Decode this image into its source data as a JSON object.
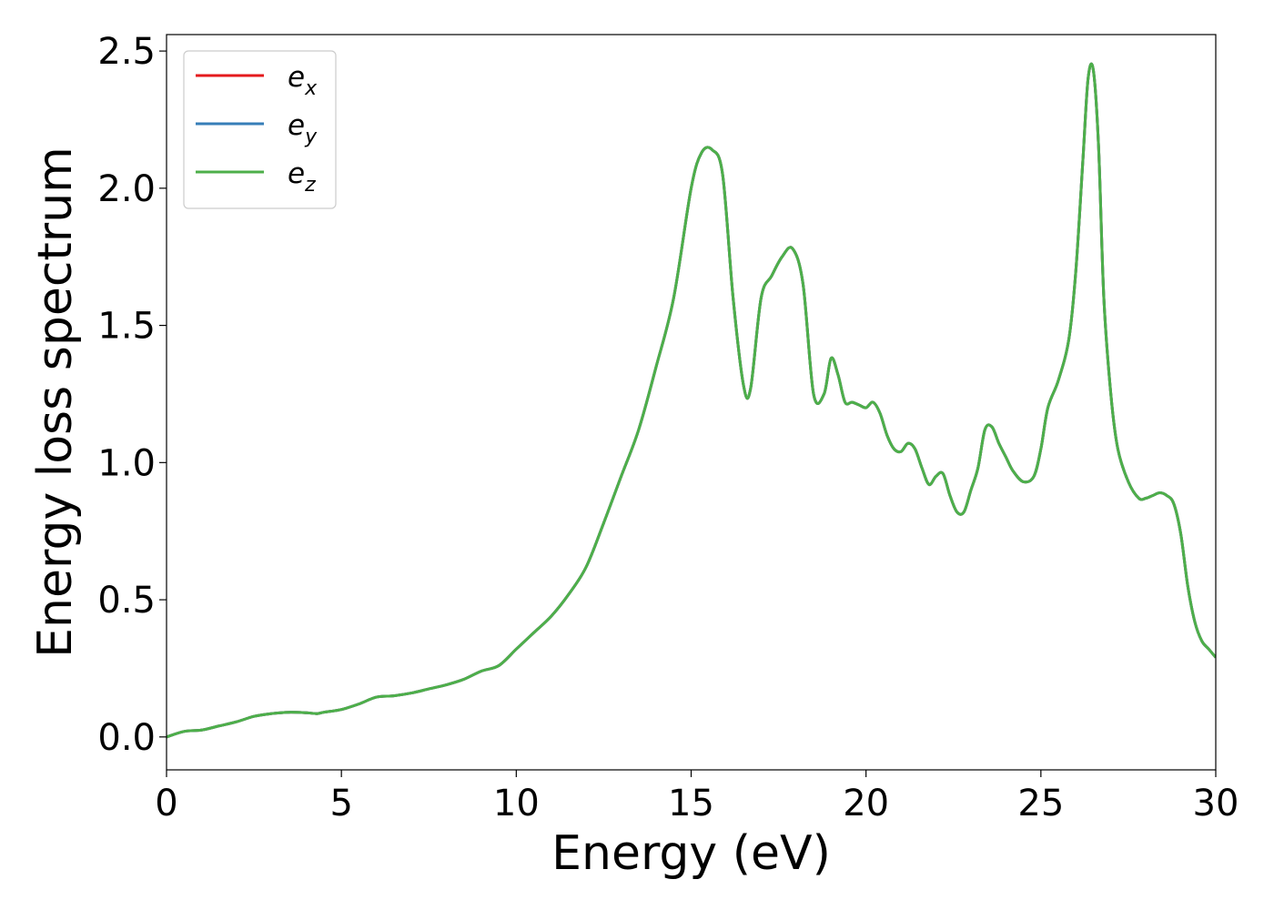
{
  "chart_data": {
    "type": "line",
    "title": "",
    "xlabel": "Energy (eV)",
    "ylabel": "Energy loss spectrum",
    "xlim": [
      0,
      30
    ],
    "ylim": [
      -0.12,
      2.56
    ],
    "xticks": [
      0,
      5,
      10,
      15,
      20,
      25,
      30
    ],
    "xtick_labels": [
      "0",
      "5",
      "10",
      "15",
      "20",
      "25",
      "30"
    ],
    "yticks": [
      0.0,
      0.5,
      1.0,
      1.5,
      2.0,
      2.5
    ],
    "ytick_labels": [
      "0.0",
      "0.5",
      "1.0",
      "1.5",
      "2.0",
      "2.5"
    ],
    "grid": false,
    "legend_position": "top-left",
    "x": [
      0,
      0.5,
      1,
      1.5,
      2,
      2.5,
      3,
      3.5,
      4,
      4.3,
      4.5,
      5,
      5.5,
      6,
      6.5,
      7,
      7.5,
      8,
      8.5,
      9,
      9.5,
      10,
      10.5,
      11,
      11.5,
      12,
      12.5,
      13,
      13.5,
      14,
      14.5,
      15,
      15.3,
      15.6,
      15.9,
      16.2,
      16.5,
      16.7,
      17,
      17.3,
      17.6,
      17.9,
      18.2,
      18.5,
      18.8,
      19,
      19.2,
      19.4,
      19.6,
      19.8,
      20,
      20.2,
      20.4,
      20.6,
      20.8,
      21,
      21.2,
      21.4,
      21.6,
      21.8,
      22,
      22.2,
      22.4,
      22.6,
      22.8,
      23,
      23.2,
      23.4,
      23.6,
      23.8,
      24,
      24.2,
      24.5,
      24.8,
      25,
      25.2,
      25.5,
      25.8,
      26,
      26.2,
      26.35,
      26.5,
      26.65,
      26.8,
      27,
      27.2,
      27.5,
      27.8,
      28,
      28.2,
      28.4,
      28.6,
      28.8,
      29,
      29.2,
      29.4,
      29.6,
      29.8,
      30
    ],
    "series": [
      {
        "name": "e_x",
        "label_base": "e",
        "label_sub": "x",
        "color": "#e41a1c",
        "values": [
          0.0,
          0.02,
          0.025,
          0.04,
          0.055,
          0.075,
          0.085,
          0.09,
          0.088,
          0.085,
          0.09,
          0.1,
          0.12,
          0.145,
          0.15,
          0.16,
          0.175,
          0.19,
          0.21,
          0.24,
          0.26,
          0.32,
          0.38,
          0.44,
          0.52,
          0.62,
          0.78,
          0.95,
          1.12,
          1.35,
          1.6,
          2.0,
          2.13,
          2.14,
          2.05,
          1.6,
          1.28,
          1.27,
          1.6,
          1.68,
          1.75,
          1.78,
          1.65,
          1.25,
          1.25,
          1.38,
          1.32,
          1.22,
          1.22,
          1.21,
          1.2,
          1.22,
          1.18,
          1.1,
          1.05,
          1.04,
          1.07,
          1.05,
          0.98,
          0.92,
          0.95,
          0.96,
          0.88,
          0.82,
          0.82,
          0.9,
          0.98,
          1.12,
          1.13,
          1.07,
          1.02,
          0.97,
          0.93,
          0.95,
          1.05,
          1.2,
          1.3,
          1.45,
          1.7,
          2.1,
          2.4,
          2.43,
          2.15,
          1.6,
          1.25,
          1.05,
          0.93,
          0.87,
          0.87,
          0.88,
          0.89,
          0.88,
          0.85,
          0.74,
          0.55,
          0.42,
          0.35,
          0.32,
          0.29
        ]
      },
      {
        "name": "e_y",
        "label_base": "e",
        "label_sub": "y",
        "color": "#377eb8",
        "values": [
          0.0,
          0.02,
          0.025,
          0.04,
          0.055,
          0.075,
          0.085,
          0.09,
          0.088,
          0.085,
          0.09,
          0.1,
          0.12,
          0.145,
          0.15,
          0.16,
          0.175,
          0.19,
          0.21,
          0.24,
          0.26,
          0.32,
          0.38,
          0.44,
          0.52,
          0.62,
          0.78,
          0.95,
          1.12,
          1.35,
          1.6,
          2.0,
          2.13,
          2.14,
          2.05,
          1.6,
          1.28,
          1.27,
          1.6,
          1.68,
          1.75,
          1.78,
          1.65,
          1.25,
          1.25,
          1.38,
          1.32,
          1.22,
          1.22,
          1.21,
          1.2,
          1.22,
          1.18,
          1.1,
          1.05,
          1.04,
          1.07,
          1.05,
          0.98,
          0.92,
          0.95,
          0.96,
          0.88,
          0.82,
          0.82,
          0.9,
          0.98,
          1.12,
          1.13,
          1.07,
          1.02,
          0.97,
          0.93,
          0.95,
          1.05,
          1.2,
          1.3,
          1.45,
          1.7,
          2.1,
          2.4,
          2.43,
          2.15,
          1.6,
          1.25,
          1.05,
          0.93,
          0.87,
          0.87,
          0.88,
          0.89,
          0.88,
          0.85,
          0.74,
          0.55,
          0.42,
          0.35,
          0.32,
          0.29
        ]
      },
      {
        "name": "e_z",
        "label_base": "e",
        "label_sub": "z",
        "color": "#4daf4a",
        "values": [
          0.0,
          0.02,
          0.025,
          0.04,
          0.055,
          0.075,
          0.085,
          0.09,
          0.088,
          0.085,
          0.09,
          0.1,
          0.12,
          0.145,
          0.15,
          0.16,
          0.175,
          0.19,
          0.21,
          0.24,
          0.26,
          0.32,
          0.38,
          0.44,
          0.52,
          0.62,
          0.78,
          0.95,
          1.12,
          1.35,
          1.6,
          2.0,
          2.13,
          2.14,
          2.05,
          1.6,
          1.28,
          1.27,
          1.6,
          1.68,
          1.75,
          1.78,
          1.65,
          1.25,
          1.25,
          1.38,
          1.32,
          1.22,
          1.22,
          1.21,
          1.2,
          1.22,
          1.18,
          1.1,
          1.05,
          1.04,
          1.07,
          1.05,
          0.98,
          0.92,
          0.95,
          0.96,
          0.88,
          0.82,
          0.82,
          0.9,
          0.98,
          1.12,
          1.13,
          1.07,
          1.02,
          0.97,
          0.93,
          0.95,
          1.05,
          1.2,
          1.3,
          1.45,
          1.7,
          2.1,
          2.4,
          2.43,
          2.15,
          1.6,
          1.25,
          1.05,
          0.93,
          0.87,
          0.87,
          0.88,
          0.89,
          0.88,
          0.85,
          0.74,
          0.55,
          0.42,
          0.35,
          0.32,
          0.29
        ]
      }
    ]
  }
}
